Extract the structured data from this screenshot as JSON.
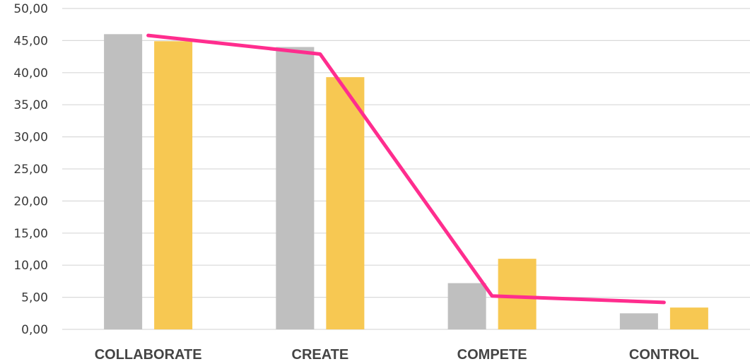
{
  "chart_data": {
    "type": "bar",
    "categories": [
      "COLLABORATE",
      "CREATE",
      "COMPETE",
      "CONTROL"
    ],
    "series": [
      {
        "type": "bar",
        "color": "#bfbfbf",
        "values": [
          46.0,
          44.0,
          7.2,
          2.5
        ]
      },
      {
        "type": "bar",
        "color": "#f7c852",
        "values": [
          44.9,
          39.3,
          11.0,
          3.4
        ]
      },
      {
        "type": "line",
        "color": "#ff2d8e",
        "values": [
          45.8,
          42.9,
          5.2,
          4.2
        ]
      }
    ],
    "y_ticks": [
      "0,00",
      "5,00",
      "10,00",
      "15,00",
      "20,00",
      "25,00",
      "30,00",
      "35,00",
      "40,00",
      "45,00",
      "50,00"
    ],
    "ylim": [
      0,
      50
    ],
    "grid": true,
    "legend": false
  }
}
